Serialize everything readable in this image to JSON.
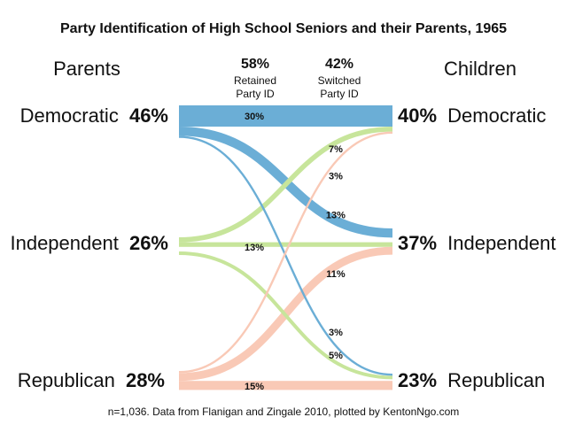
{
  "chart_data": {
    "type": "sankey",
    "title": "Party Identification of High School Seniors and their Parents, 1965",
    "left_header": "Parents",
    "right_header": "Children",
    "retained": {
      "value": "58%",
      "label_line1": "Retained",
      "label_line2": "Party ID"
    },
    "switched": {
      "value": "42%",
      "label_line1": "Switched",
      "label_line2": "Party ID"
    },
    "colors": {
      "Democratic": "#6baed6",
      "Independent": "#c7e59b",
      "Republican": "#f9c9b6"
    },
    "parents": [
      {
        "name": "Democratic",
        "value": 46,
        "label": "46%"
      },
      {
        "name": "Independent",
        "value": 26,
        "label": "26%"
      },
      {
        "name": "Republican",
        "value": 28,
        "label": "28%"
      }
    ],
    "children": [
      {
        "name": "Democratic",
        "value": 40,
        "label": "40%"
      },
      {
        "name": "Independent",
        "value": 37,
        "label": "37%"
      },
      {
        "name": "Republican",
        "value": 23,
        "label": "23%"
      }
    ],
    "flows": [
      {
        "from": "Democratic",
        "to": "Democratic",
        "value": 30,
        "label": "30%"
      },
      {
        "from": "Democratic",
        "to": "Independent",
        "value": 13,
        "label": "13%"
      },
      {
        "from": "Democratic",
        "to": "Republican",
        "value": 3,
        "label": "3%"
      },
      {
        "from": "Independent",
        "to": "Democratic",
        "value": 7,
        "label": "7%"
      },
      {
        "from": "Independent",
        "to": "Independent",
        "value": 13,
        "label": "13%"
      },
      {
        "from": "Independent",
        "to": "Republican",
        "value": 5,
        "label": "5%"
      },
      {
        "from": "Republican",
        "to": "Democratic",
        "value": 3,
        "label": "3%"
      },
      {
        "from": "Republican",
        "to": "Independent",
        "value": 11,
        "label": "11%"
      },
      {
        "from": "Republican",
        "to": "Republican",
        "value": 15,
        "label": "15%"
      }
    ],
    "footnote": "n=1,036. Data from Flanigan and Zingale 2010, plotted by KentonNgo.com"
  }
}
